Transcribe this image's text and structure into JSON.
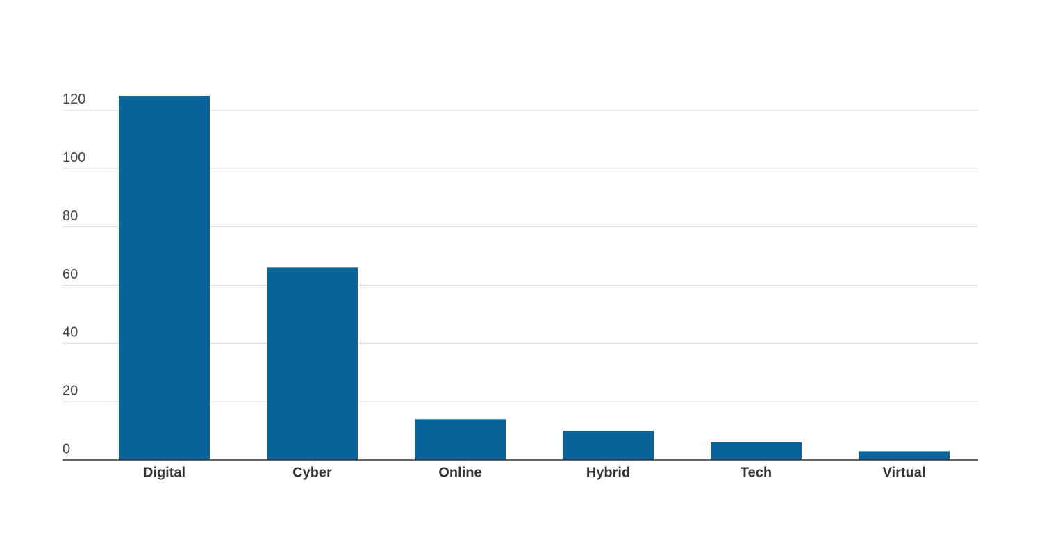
{
  "chart_data": {
    "type": "bar",
    "categories": [
      "Digital",
      "Cyber",
      "Online",
      "Hybrid",
      "Tech",
      "Virtual"
    ],
    "values": [
      125,
      66,
      14,
      10,
      6,
      3
    ],
    "color": "#0a6399",
    "ylim": [
      0,
      125
    ],
    "yticks": [
      0,
      20,
      40,
      60,
      80,
      100,
      120
    ],
    "grid": true
  }
}
